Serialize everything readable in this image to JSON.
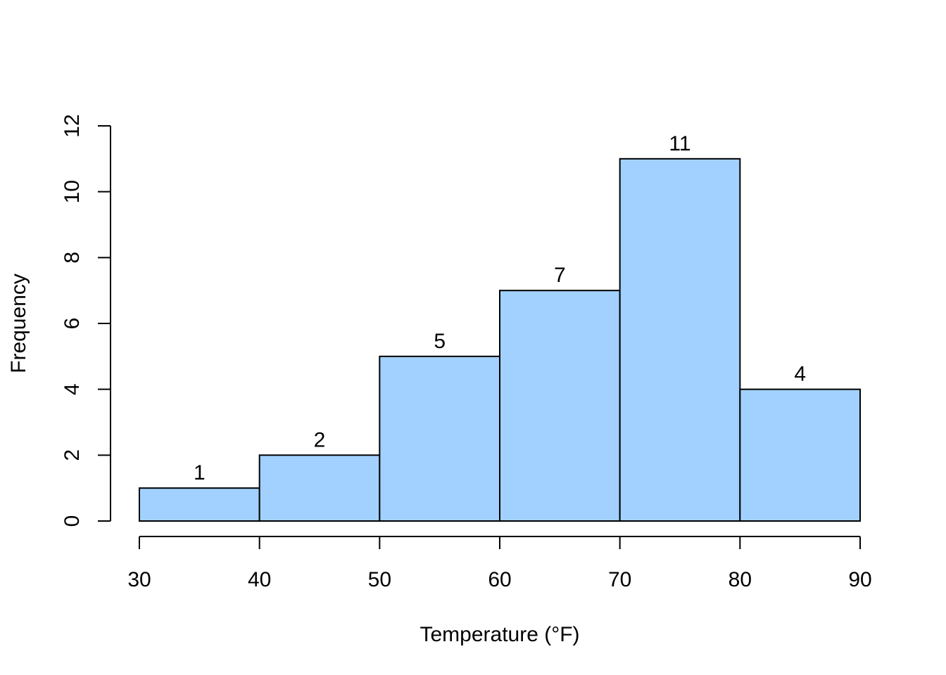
{
  "chart_data": {
    "type": "bar",
    "subtype": "histogram",
    "title": "",
    "xlabel": "Temperature  (°F)",
    "ylabel": "Frequency",
    "bins": [
      {
        "start": 30,
        "end": 40,
        "count": 1
      },
      {
        "start": 40,
        "end": 50,
        "count": 2
      },
      {
        "start": 50,
        "end": 60,
        "count": 5
      },
      {
        "start": 60,
        "end": 70,
        "count": 7
      },
      {
        "start": 70,
        "end": 80,
        "count": 11
      },
      {
        "start": 80,
        "end": 90,
        "count": 4
      }
    ],
    "values": [
      1,
      2,
      5,
      7,
      11,
      4
    ],
    "value_labels": [
      "1",
      "2",
      "5",
      "7",
      "11",
      "4"
    ],
    "x_ticks": [
      30,
      40,
      50,
      60,
      70,
      80,
      90
    ],
    "x_tick_labels": [
      "30",
      "40",
      "50",
      "60",
      "70",
      "80",
      "90"
    ],
    "y_ticks": [
      0,
      2,
      4,
      6,
      8,
      10,
      12
    ],
    "y_tick_labels": [
      "0",
      "2",
      "4",
      "6",
      "8",
      "10",
      "12"
    ],
    "xlim": [
      30,
      90
    ],
    "ylim": [
      0,
      12
    ],
    "grid": false,
    "legend": "none",
    "bar_color": "#A2D1FF",
    "edge_color": "#000000"
  }
}
